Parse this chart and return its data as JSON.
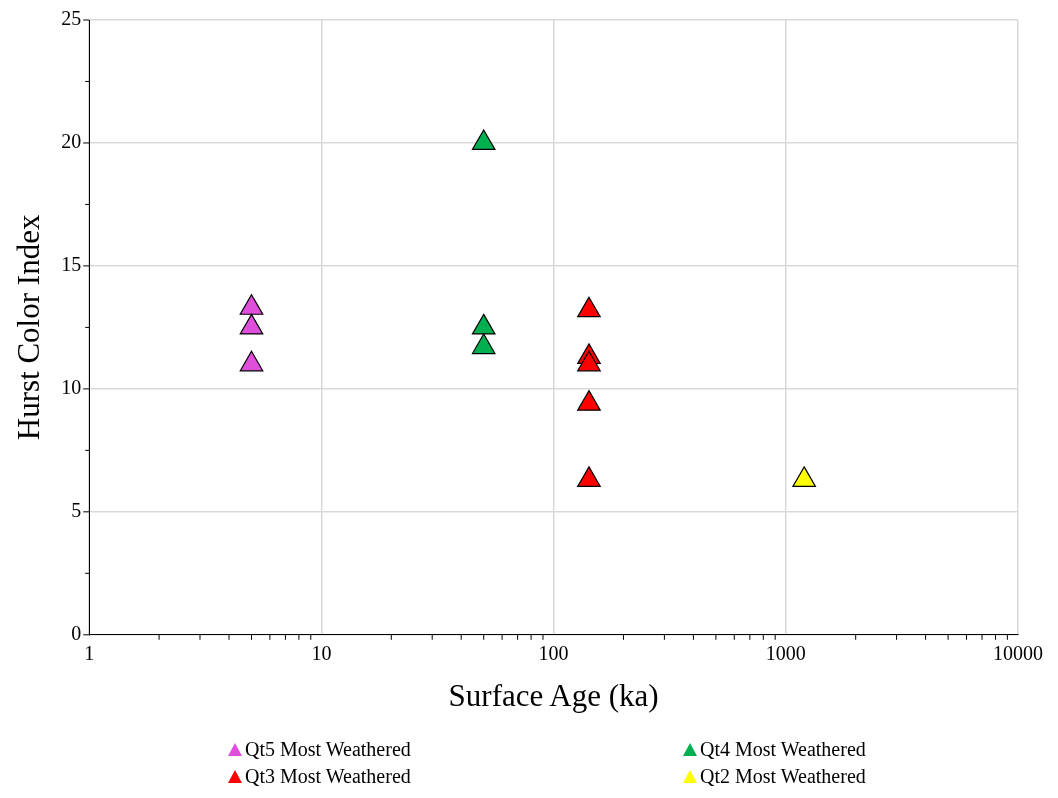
{
  "chart_data": {
    "type": "scatter",
    "xlabel": "Surface Age (ka)",
    "ylabel": "Hurst Color Index",
    "log": "x",
    "xlim": [
      1,
      10000
    ],
    "xticks": [
      1,
      10,
      100,
      1000,
      10000
    ],
    "ylim": [
      0,
      25
    ],
    "yticks": [
      0,
      5,
      10,
      15,
      20,
      25
    ],
    "grid": true,
    "legend": "bottom",
    "marker": "triangle",
    "series": [
      {
        "name": "Qt5 Most Weathered",
        "color": "#e04fdc",
        "x": [
          5,
          5,
          5
        ],
        "values": [
          13.3,
          12.5,
          11.0
        ]
      },
      {
        "name": "Qt4 Most Weathered",
        "color": "#00b050",
        "x": [
          50,
          50,
          50
        ],
        "values": [
          20.0,
          12.5,
          11.7
        ]
      },
      {
        "name": "Qt3 Most Weathered",
        "color": "#ff0000",
        "x": [
          142,
          142,
          142,
          142,
          142
        ],
        "values": [
          13.2,
          11.3,
          11.0,
          9.4,
          6.3
        ]
      },
      {
        "name": "Qt2 Most Weathered",
        "color": "#ffff00",
        "x": [
          1200
        ],
        "values": [
          6.3
        ]
      }
    ]
  }
}
